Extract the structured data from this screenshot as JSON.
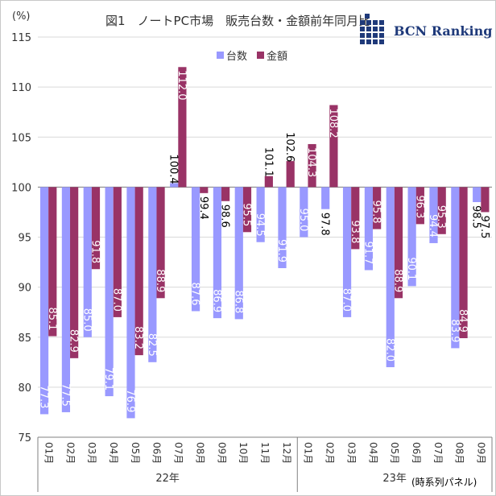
{
  "chart_data": {
    "type": "bar",
    "title": "図1　ノートPC市場　販売台数・金額前年同月比",
    "ylabel": "(%)",
    "ylim": [
      75,
      115
    ],
    "yticks": [
      75,
      80,
      85,
      90,
      95,
      100,
      105,
      110,
      115
    ],
    "baseline": 100,
    "grid": true,
    "legend_position": "top",
    "categories": [
      "01月",
      "02月",
      "03月",
      "04月",
      "05月",
      "06月",
      "07月",
      "08月",
      "09月",
      "10月",
      "11月",
      "12月",
      "01月",
      "02月",
      "03月",
      "04月",
      "05月",
      "06月",
      "07月",
      "08月",
      "09月"
    ],
    "groups": [
      {
        "label": "22年",
        "count": 12
      },
      {
        "label": "23年",
        "count": 9
      }
    ],
    "series": [
      {
        "name": "台数",
        "color": "#9999ff",
        "values": [
          77.3,
          77.5,
          85.0,
          79.1,
          76.9,
          82.5,
          100.4,
          87.6,
          86.9,
          86.8,
          94.5,
          91.9,
          95.0,
          97.8,
          87.0,
          91.7,
          82.0,
          90.1,
          94.4,
          83.9,
          98.5
        ]
      },
      {
        "name": "金額",
        "color": "#993366",
        "values": [
          85.1,
          82.9,
          91.8,
          87.0,
          83.2,
          88.9,
          112.0,
          99.4,
          98.6,
          95.5,
          101.1,
          102.6,
          104.3,
          108.2,
          93.8,
          95.8,
          88.9,
          96.3,
          95.3,
          84.9,
          97.5
        ]
      }
    ],
    "note": "(時系列パネル)"
  },
  "brand": {
    "name": "BCN Ranking",
    "color": "#1f3a7a"
  }
}
